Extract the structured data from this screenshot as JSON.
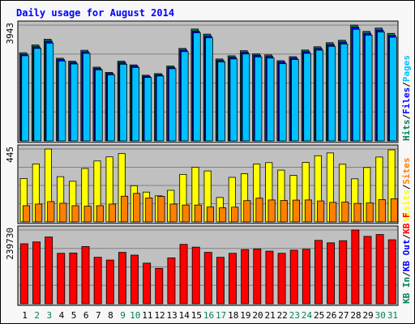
{
  "title": "Daily usage for August 2014",
  "colors": {
    "title": "#0000ff",
    "panel_bg": "#c0c0c0",
    "frame_bg": "#f7f7f7",
    "hits": "#00805c",
    "files": "#0000ff",
    "pages": "#00c0ff",
    "sites": "#ff8000",
    "visits": "#ffff00",
    "kb": "#ff0000",
    "day_normal": "#000000",
    "day_weekend": "#00805c"
  },
  "chart_data": {
    "type": "bar",
    "categories": [
      "1",
      "2",
      "3",
      "4",
      "5",
      "6",
      "7",
      "8",
      "9",
      "10",
      "11",
      "12",
      "13",
      "14",
      "15",
      "16",
      "17",
      "18",
      "19",
      "20",
      "21",
      "22",
      "23",
      "24",
      "25",
      "26",
      "27",
      "28",
      "29",
      "30",
      "31"
    ],
    "weekend_days": [
      "2",
      "3",
      "9",
      "10",
      "16",
      "17",
      "23",
      "24",
      "30",
      "31"
    ],
    "panels": [
      {
        "id": "traffic",
        "ymax": 3943,
        "ymax_label": "3943",
        "legend": [
          {
            "text": "Hits",
            "color": "#00805c"
          },
          {
            "text": "/",
            "color": "#000000"
          },
          {
            "text": "Files",
            "color": "#0000ff"
          },
          {
            "text": "/",
            "color": "#000000"
          },
          {
            "text": "Pages",
            "color": "#00c0ff"
          }
        ],
        "series": [
          {
            "name": "Hits",
            "color": "#00805c",
            "values": [
              3002,
              3267,
              3462,
              2815,
              2715,
              3085,
              2511,
              2333,
              2716,
              2588,
              2238,
              2292,
              2550,
              3150,
              3809,
              3636,
              2789,
              2897,
              3072,
              2967,
              2929,
              2731,
              2868,
              3094,
              3205,
              3344,
              3427,
              3943,
              3729,
              3842,
              3660
            ]
          },
          {
            "name": "Files",
            "color": "#0000ff",
            "values": [
              2947,
              3206,
              3398,
              2769,
              2670,
              3030,
              2468,
              2295,
              2668,
              2546,
              2200,
              2252,
              2506,
              3094,
              3741,
              3571,
              2740,
              2845,
              3016,
              2913,
              2875,
              2683,
              2818,
              3038,
              3148,
              3283,
              3365,
              3872,
              3663,
              3773,
              3594
            ]
          },
          {
            "name": "Pages",
            "color": "#00c0ff",
            "values": [
              2900,
              3150,
              3330,
              2720,
              2620,
              2980,
              2420,
              2250,
              2610,
              2500,
              2160,
              2210,
              2460,
              3040,
              3680,
              3510,
              2690,
              2790,
              2960,
              2860,
              2820,
              2630,
              2770,
              2980,
              3090,
              3220,
              3300,
              3800,
              3600,
              3710,
              3530
            ]
          }
        ]
      },
      {
        "id": "visitors",
        "ymax": 445,
        "ymax_label": "445",
        "legend": [
          {
            "text": "Visits",
            "color": "#ffff00"
          },
          {
            "text": "/",
            "color": "#000000"
          },
          {
            "text": "Sites",
            "color": "#ff8000"
          }
        ],
        "series": [
          {
            "name": "Visits",
            "color": "#ffff00",
            "values": [
              265,
              354,
              445,
              276,
              248,
              326,
              372,
              397,
              417,
              221,
              182,
              159,
              193,
              290,
              334,
              311,
              149,
              272,
              294,
              353,
              362,
              316,
              284,
              363,
              404,
              421,
              352,
              263,
              332,
              396,
              440
            ]
          },
          {
            "name": "Sites",
            "color": "#ff8000",
            "values": [
              99,
              109,
              124,
              114,
              99,
              96,
              99,
              109,
              157,
              174,
              146,
              156,
              109,
              103,
              103,
              91,
              86,
              90,
              130,
              145,
              134,
              131,
              133,
              134,
              128,
              119,
              121,
              113,
              116,
              136,
              141
            ]
          }
        ]
      },
      {
        "id": "kbytes",
        "ymax": 239730,
        "ymax_label": "239730",
        "legend": [
          {
            "text": "KB In",
            "color": "#00805c"
          },
          {
            "text": "/",
            "color": "#000000"
          },
          {
            "text": "KB Out",
            "color": "#0000ff"
          },
          {
            "text": "/",
            "color": "#000000"
          },
          {
            "text": "KB F",
            "color": "#ff0000"
          }
        ],
        "series": [
          {
            "name": "KB F",
            "color": "#ff0000",
            "values": [
              195000,
              201000,
              217000,
              164000,
              165000,
              186000,
              151000,
              142000,
              167000,
              158000,
              132000,
              115000,
              149000,
              193000,
              184000,
              167000,
              151000,
              164000,
              176000,
              178000,
              171000,
              164000,
              174000,
              177000,
              206000,
              198000,
              205000,
              239730,
              219000,
              225000,
              208000
            ]
          }
        ]
      }
    ]
  }
}
